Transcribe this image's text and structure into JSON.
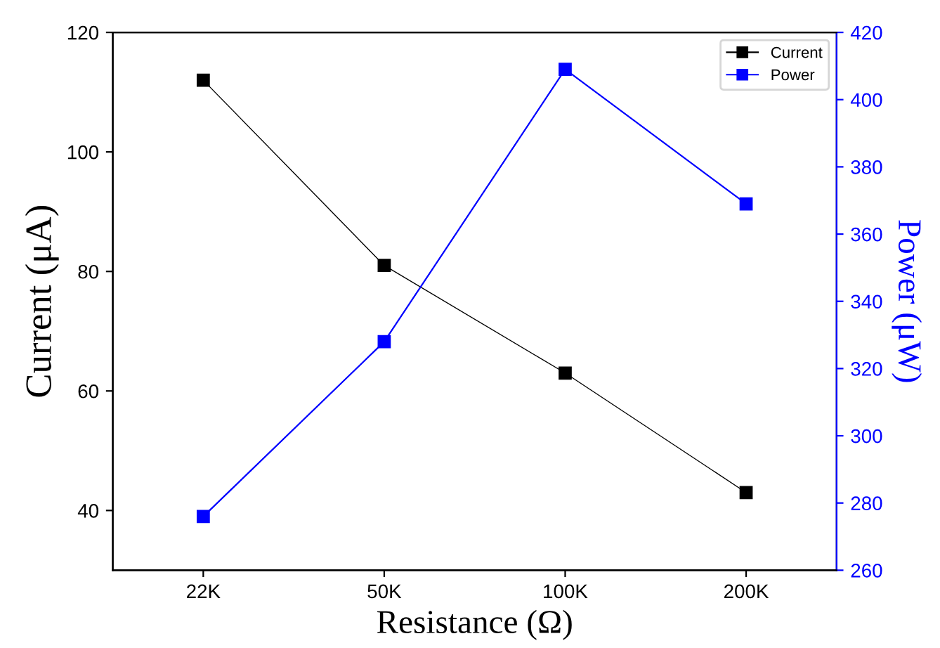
{
  "chart_data": {
    "type": "line",
    "xlabel": "Resistance (Ω)",
    "ylabel": "Current (μA)",
    "y2label": "Power (μW)",
    "categories": [
      "22K",
      "50K",
      "100K",
      "200K"
    ],
    "series": [
      {
        "name": "Current",
        "color": "#000000",
        "values": [
          112,
          81,
          63,
          43
        ]
      },
      {
        "name": "Power",
        "color": "#0000ff",
        "values": [
          276,
          328,
          409,
          369
        ],
        "axis": "y2"
      }
    ],
    "ylim": [
      30,
      120
    ],
    "yticks": [
      40,
      60,
      80,
      100,
      120
    ],
    "y2lim": [
      260,
      420
    ],
    "y2ticks": [
      260,
      280,
      300,
      320,
      340,
      360,
      380,
      400,
      420
    ],
    "marker": "square",
    "line_style": "solid",
    "grid": false,
    "legend": "top right"
  }
}
